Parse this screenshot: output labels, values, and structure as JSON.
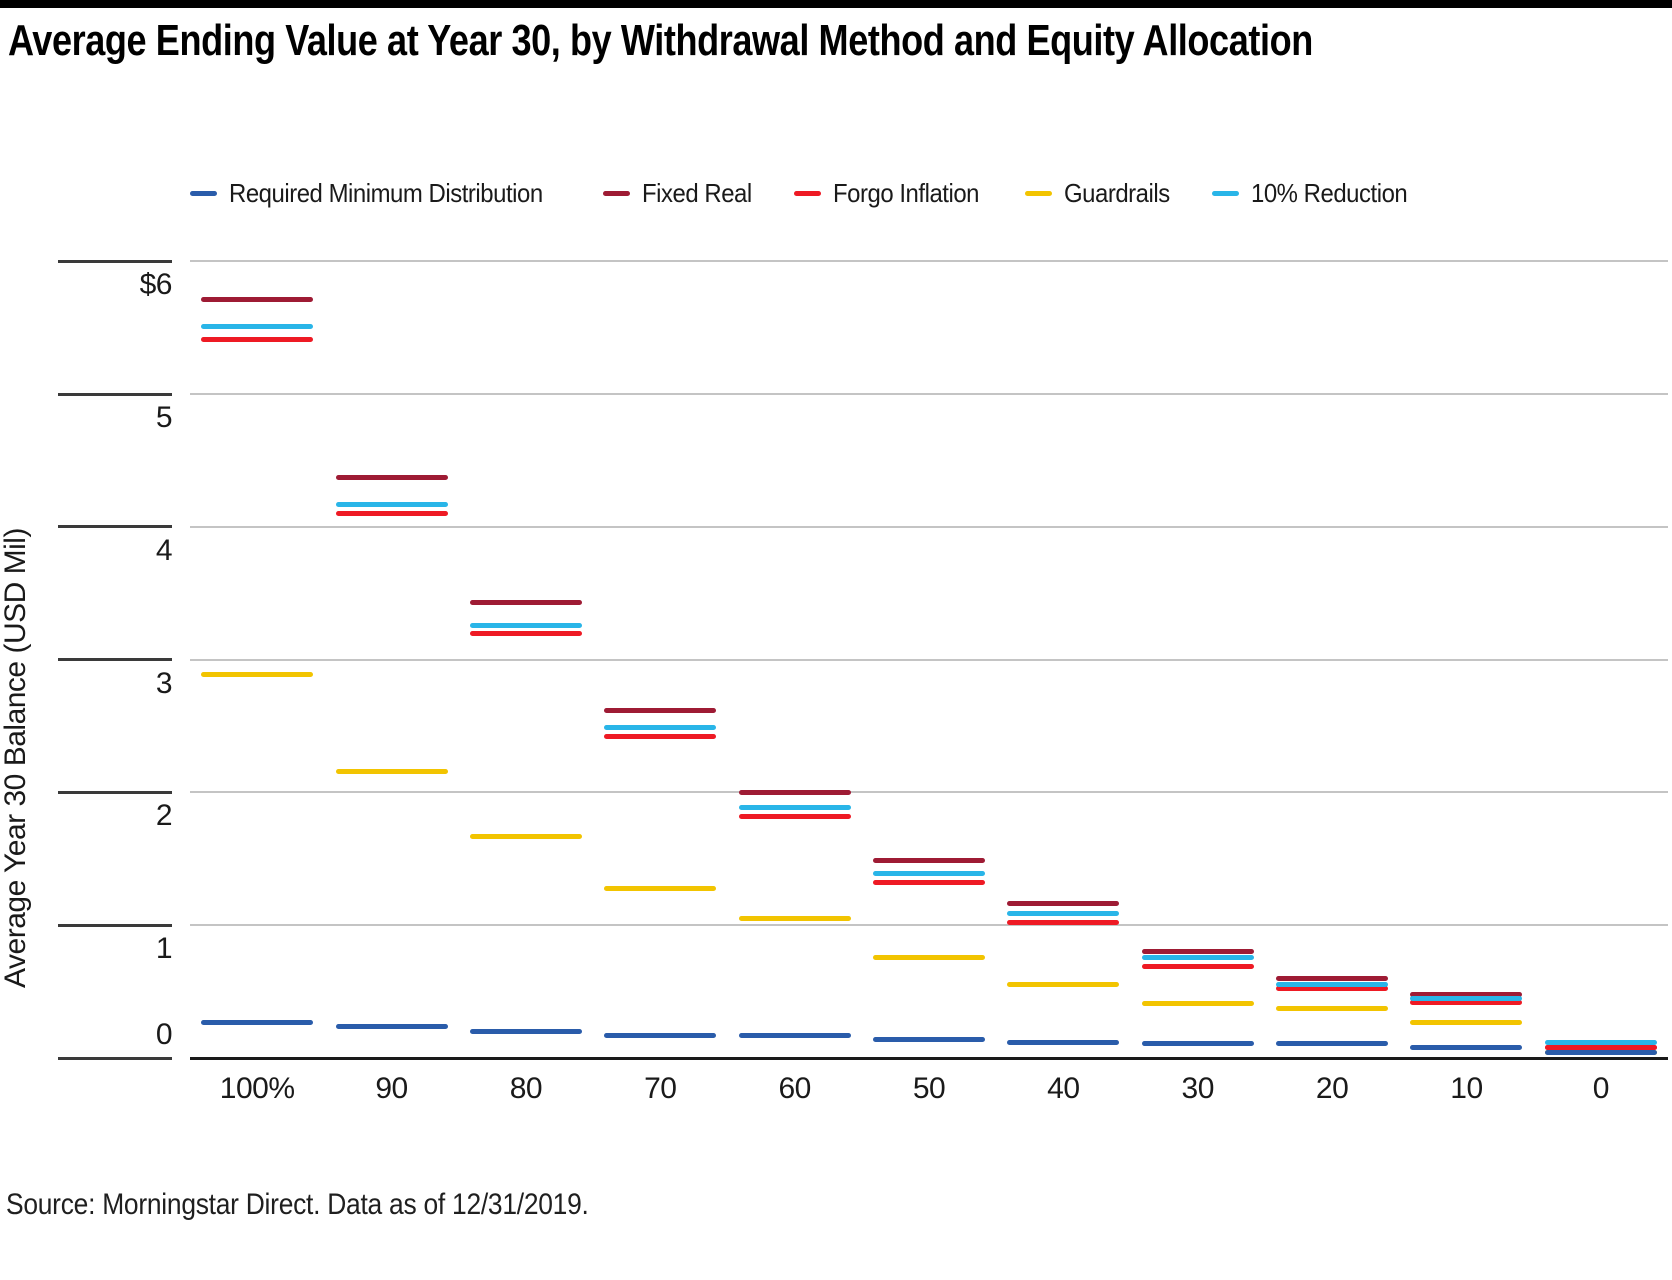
{
  "page": {
    "title": "Average Ending Value at Year 30, by Withdrawal Method and Equity Allocation",
    "source": "Source: Morningstar Direct. Data as of 12/31/2019."
  },
  "chart_data": {
    "type": "scatter",
    "marker_style": "horizontal-dash",
    "title": "Average Ending Value at Year 30, by Withdrawal Method and Equity Allocation",
    "xlabel": "",
    "ylabel": "Average Year 30 Balance (USD Mil)",
    "categories": [
      "100%",
      "90",
      "80",
      "70",
      "60",
      "50",
      "40",
      "30",
      "20",
      "10",
      "0"
    ],
    "series": [
      {
        "name": "Required Minimum Distribution",
        "color": "#2a5caa",
        "values": [
          0.27,
          0.24,
          0.2,
          0.17,
          0.17,
          0.14,
          0.12,
          0.11,
          0.11,
          0.08,
          0.04
        ]
      },
      {
        "name": "Fixed Real",
        "color": "#9e1b34",
        "values": [
          5.71,
          4.37,
          3.43,
          2.62,
          2.0,
          1.49,
          1.16,
          0.8,
          0.6,
          0.48,
          0.08
        ]
      },
      {
        "name": "Forgo Inflation",
        "color": "#ee1a24",
        "values": [
          5.41,
          4.1,
          3.2,
          2.42,
          1.82,
          1.32,
          1.02,
          0.69,
          0.52,
          0.42,
          0.08
        ]
      },
      {
        "name": "Guardrails",
        "color": "#f2c400",
        "values": [
          2.89,
          2.16,
          1.67,
          1.28,
          1.05,
          0.76,
          0.55,
          0.41,
          0.37,
          0.27,
          0.04
        ]
      },
      {
        "name": "10% Reduction",
        "color": "#29b5e8",
        "values": [
          5.51,
          4.17,
          3.26,
          2.49,
          1.89,
          1.39,
          1.09,
          0.76,
          0.55,
          0.45,
          0.12
        ]
      }
    ],
    "ylim": [
      0,
      6
    ],
    "yticks": [
      {
        "label": "$6",
        "value": 6
      },
      {
        "label": "5",
        "value": 5
      },
      {
        "label": "4",
        "value": 4
      },
      {
        "label": "3",
        "value": 3
      },
      {
        "label": "2",
        "value": 2
      },
      {
        "label": "1",
        "value": 1
      },
      {
        "label": "0",
        "value": 0
      }
    ],
    "grid": true,
    "legend_position": "top"
  }
}
